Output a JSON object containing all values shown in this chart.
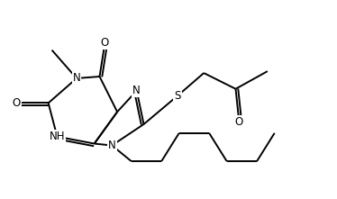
{
  "bg_color": "#ffffff",
  "line_color": "#000000",
  "line_width": 1.4,
  "font_size": 8.5,
  "figsize": [
    3.74,
    2.21
  ],
  "dpi": 100,
  "xlim": [
    0,
    9.5
  ],
  "ylim": [
    0,
    5.5
  ]
}
